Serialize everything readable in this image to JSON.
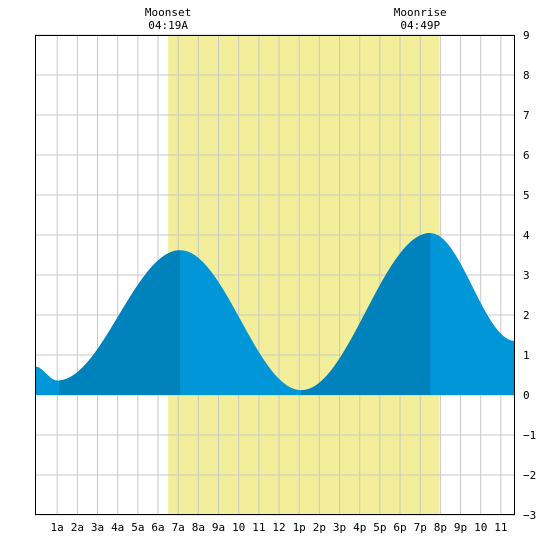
{
  "chart_data": {
    "type": "area",
    "title": "",
    "xlabel": "",
    "ylabel": "",
    "xlim": [
      -0.1,
      23.7
    ],
    "ylim": [
      -3,
      9
    ],
    "grid": true,
    "x_ticks": [
      {
        "x": 1,
        "label": "1a"
      },
      {
        "x": 2,
        "label": "2a"
      },
      {
        "x": 3,
        "label": "3a"
      },
      {
        "x": 4,
        "label": "4a"
      },
      {
        "x": 5,
        "label": "5a"
      },
      {
        "x": 6,
        "label": "6a"
      },
      {
        "x": 7,
        "label": "7a"
      },
      {
        "x": 8,
        "label": "8a"
      },
      {
        "x": 9,
        "label": "9a"
      },
      {
        "x": 10,
        "label": "10"
      },
      {
        "x": 11,
        "label": "11"
      },
      {
        "x": 12,
        "label": "12"
      },
      {
        "x": 13,
        "label": "1p"
      },
      {
        "x": 14,
        "label": "2p"
      },
      {
        "x": 15,
        "label": "3p"
      },
      {
        "x": 16,
        "label": "4p"
      },
      {
        "x": 17,
        "label": "5p"
      },
      {
        "x": 18,
        "label": "6p"
      },
      {
        "x": 19,
        "label": "7p"
      },
      {
        "x": 20,
        "label": "8p"
      },
      {
        "x": 21,
        "label": "9p"
      },
      {
        "x": 22,
        "label": "10"
      },
      {
        "x": 23,
        "label": "11"
      }
    ],
    "y_ticks": [
      {
        "y": 9,
        "label": "9"
      },
      {
        "y": 8,
        "label": "8"
      },
      {
        "y": 7,
        "label": "7"
      },
      {
        "y": 6,
        "label": "6"
      },
      {
        "y": 5,
        "label": "5"
      },
      {
        "y": 4,
        "label": "4"
      },
      {
        "y": 3,
        "label": "3"
      },
      {
        "y": 2,
        "label": "2"
      },
      {
        "y": 1,
        "label": "1"
      },
      {
        "y": 0,
        "label": "0"
      },
      {
        "y": -1,
        "label": "−1"
      },
      {
        "y": -2,
        "label": "−2"
      },
      {
        "y": -3,
        "label": "−3"
      }
    ],
    "extrema": [
      {
        "x": -0.1,
        "y": 0.72
      },
      {
        "x": 1.0,
        "y": 0.36
      },
      {
        "x": 7.1,
        "y": 3.62
      },
      {
        "x": 13.1,
        "y": 0.12
      },
      {
        "x": 19.5,
        "y": 4.05
      },
      {
        "x": 23.7,
        "y": 1.35
      }
    ],
    "daylight": {
      "start": 6.5,
      "end": 19.95
    },
    "dark_bands": [
      {
        "start": 1.1,
        "end": 7.1
      },
      {
        "start": 13.1,
        "end": 19.5
      }
    ],
    "moon_events": [
      {
        "name": "Moonset",
        "time": "04:19A",
        "x": 6.5
      },
      {
        "name": "Moonrise",
        "time": "04:49P",
        "x": 19.0
      }
    ],
    "colors": {
      "daylight": "#f2ee9a",
      "tide_light": "#0096d8",
      "tide_dark": "#0082bd",
      "grid": "#c8c8c8",
      "axis": "#000000"
    }
  }
}
